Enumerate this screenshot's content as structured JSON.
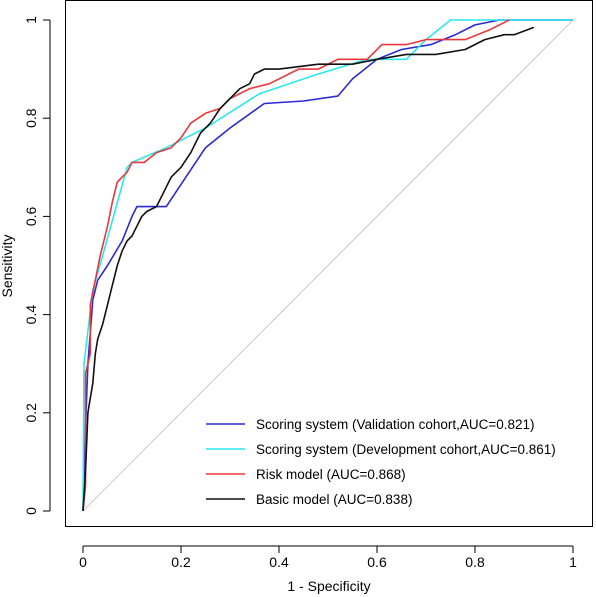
{
  "chart_data": {
    "type": "line",
    "xlabel": "1 - Specificity",
    "ylabel": "Sensitivity",
    "xlim": [
      0,
      1
    ],
    "ylim": [
      0,
      1
    ],
    "xticks": [
      0,
      0.2,
      0.4,
      0.6,
      0.8,
      1
    ],
    "yticks": [
      0,
      0.2,
      0.4,
      0.6,
      0.8,
      1
    ],
    "xtick_labels": [
      "0",
      "0.2",
      "0.4",
      "0.6",
      "0.8",
      "1"
    ],
    "ytick_labels": [
      "0",
      "0.2",
      "0.4",
      "0.6",
      "0.8",
      "1"
    ],
    "grid": false,
    "legend_position": "bottom-right",
    "reference_line": {
      "color": "#c8c8c8",
      "points": [
        [
          0,
          0
        ],
        [
          1,
          1
        ]
      ]
    },
    "series": [
      {
        "name": "Scoring system (Validation cohort,AUC=0.821)",
        "color": "#2b2bd1",
        "points": [
          [
            0,
            0
          ],
          [
            0.005,
            0.17
          ],
          [
            0.01,
            0.3
          ],
          [
            0.02,
            0.43
          ],
          [
            0.03,
            0.47
          ],
          [
            0.05,
            0.5
          ],
          [
            0.08,
            0.55
          ],
          [
            0.1,
            0.6
          ],
          [
            0.11,
            0.62
          ],
          [
            0.17,
            0.62
          ],
          [
            0.21,
            0.68
          ],
          [
            0.25,
            0.74
          ],
          [
            0.3,
            0.78
          ],
          [
            0.37,
            0.83
          ],
          [
            0.45,
            0.835
          ],
          [
            0.52,
            0.845
          ],
          [
            0.55,
            0.88
          ],
          [
            0.6,
            0.92
          ],
          [
            0.65,
            0.94
          ],
          [
            0.71,
            0.95
          ],
          [
            0.76,
            0.97
          ],
          [
            0.8,
            0.99
          ],
          [
            0.85,
            1
          ],
          [
            1,
            1
          ]
        ]
      },
      {
        "name": "Scoring system (Development cohort,AUC=0.861)",
        "color": "#2de6f0",
        "points": [
          [
            0,
            0
          ],
          [
            0.002,
            0.3
          ],
          [
            0.02,
            0.45
          ],
          [
            0.04,
            0.52
          ],
          [
            0.09,
            0.7
          ],
          [
            0.1,
            0.71
          ],
          [
            0.17,
            0.74
          ],
          [
            0.25,
            0.78
          ],
          [
            0.36,
            0.85
          ],
          [
            0.48,
            0.89
          ],
          [
            0.58,
            0.92
          ],
          [
            0.66,
            0.92
          ],
          [
            0.7,
            0.96
          ],
          [
            0.75,
            1
          ],
          [
            1,
            1
          ]
        ]
      },
      {
        "name": "Risk model (AUC=0.868)",
        "color": "#e8383c",
        "points": [
          [
            0,
            0
          ],
          [
            0.005,
            0.05
          ],
          [
            0.005,
            0.28
          ],
          [
            0.015,
            0.32
          ],
          [
            0.015,
            0.42
          ],
          [
            0.025,
            0.47
          ],
          [
            0.035,
            0.52
          ],
          [
            0.05,
            0.58
          ],
          [
            0.06,
            0.63
          ],
          [
            0.07,
            0.67
          ],
          [
            0.09,
            0.69
          ],
          [
            0.1,
            0.71
          ],
          [
            0.125,
            0.71
          ],
          [
            0.15,
            0.73
          ],
          [
            0.18,
            0.74
          ],
          [
            0.2,
            0.76
          ],
          [
            0.22,
            0.79
          ],
          [
            0.25,
            0.81
          ],
          [
            0.28,
            0.82
          ],
          [
            0.3,
            0.84
          ],
          [
            0.34,
            0.86
          ],
          [
            0.38,
            0.87
          ],
          [
            0.44,
            0.9
          ],
          [
            0.48,
            0.9
          ],
          [
            0.52,
            0.92
          ],
          [
            0.58,
            0.92
          ],
          [
            0.61,
            0.95
          ],
          [
            0.66,
            0.95
          ],
          [
            0.7,
            0.96
          ],
          [
            0.78,
            0.96
          ],
          [
            0.83,
            0.98
          ],
          [
            0.87,
            1
          ]
        ]
      },
      {
        "name": "Basic model (AUC=0.838)",
        "color": "#111111",
        "points": [
          [
            0,
            0
          ],
          [
            0.005,
            0.08
          ],
          [
            0.01,
            0.2
          ],
          [
            0.015,
            0.23
          ],
          [
            0.02,
            0.26
          ],
          [
            0.025,
            0.32
          ],
          [
            0.03,
            0.35
          ],
          [
            0.04,
            0.38
          ],
          [
            0.05,
            0.42
          ],
          [
            0.06,
            0.46
          ],
          [
            0.07,
            0.5
          ],
          [
            0.08,
            0.53
          ],
          [
            0.09,
            0.55
          ],
          [
            0.1,
            0.56
          ],
          [
            0.11,
            0.58
          ],
          [
            0.12,
            0.6
          ],
          [
            0.13,
            0.61
          ],
          [
            0.15,
            0.62
          ],
          [
            0.16,
            0.64
          ],
          [
            0.18,
            0.68
          ],
          [
            0.2,
            0.7
          ],
          [
            0.22,
            0.73
          ],
          [
            0.24,
            0.77
          ],
          [
            0.26,
            0.79
          ],
          [
            0.28,
            0.82
          ],
          [
            0.3,
            0.84
          ],
          [
            0.32,
            0.86
          ],
          [
            0.34,
            0.87
          ],
          [
            0.35,
            0.89
          ],
          [
            0.37,
            0.9
          ],
          [
            0.4,
            0.9
          ],
          [
            0.48,
            0.91
          ],
          [
            0.55,
            0.91
          ],
          [
            0.6,
            0.92
          ],
          [
            0.66,
            0.93
          ],
          [
            0.72,
            0.93
          ],
          [
            0.78,
            0.94
          ],
          [
            0.82,
            0.96
          ],
          [
            0.86,
            0.97
          ],
          [
            0.88,
            0.97
          ],
          [
            0.92,
            0.985
          ]
        ]
      }
    ]
  }
}
